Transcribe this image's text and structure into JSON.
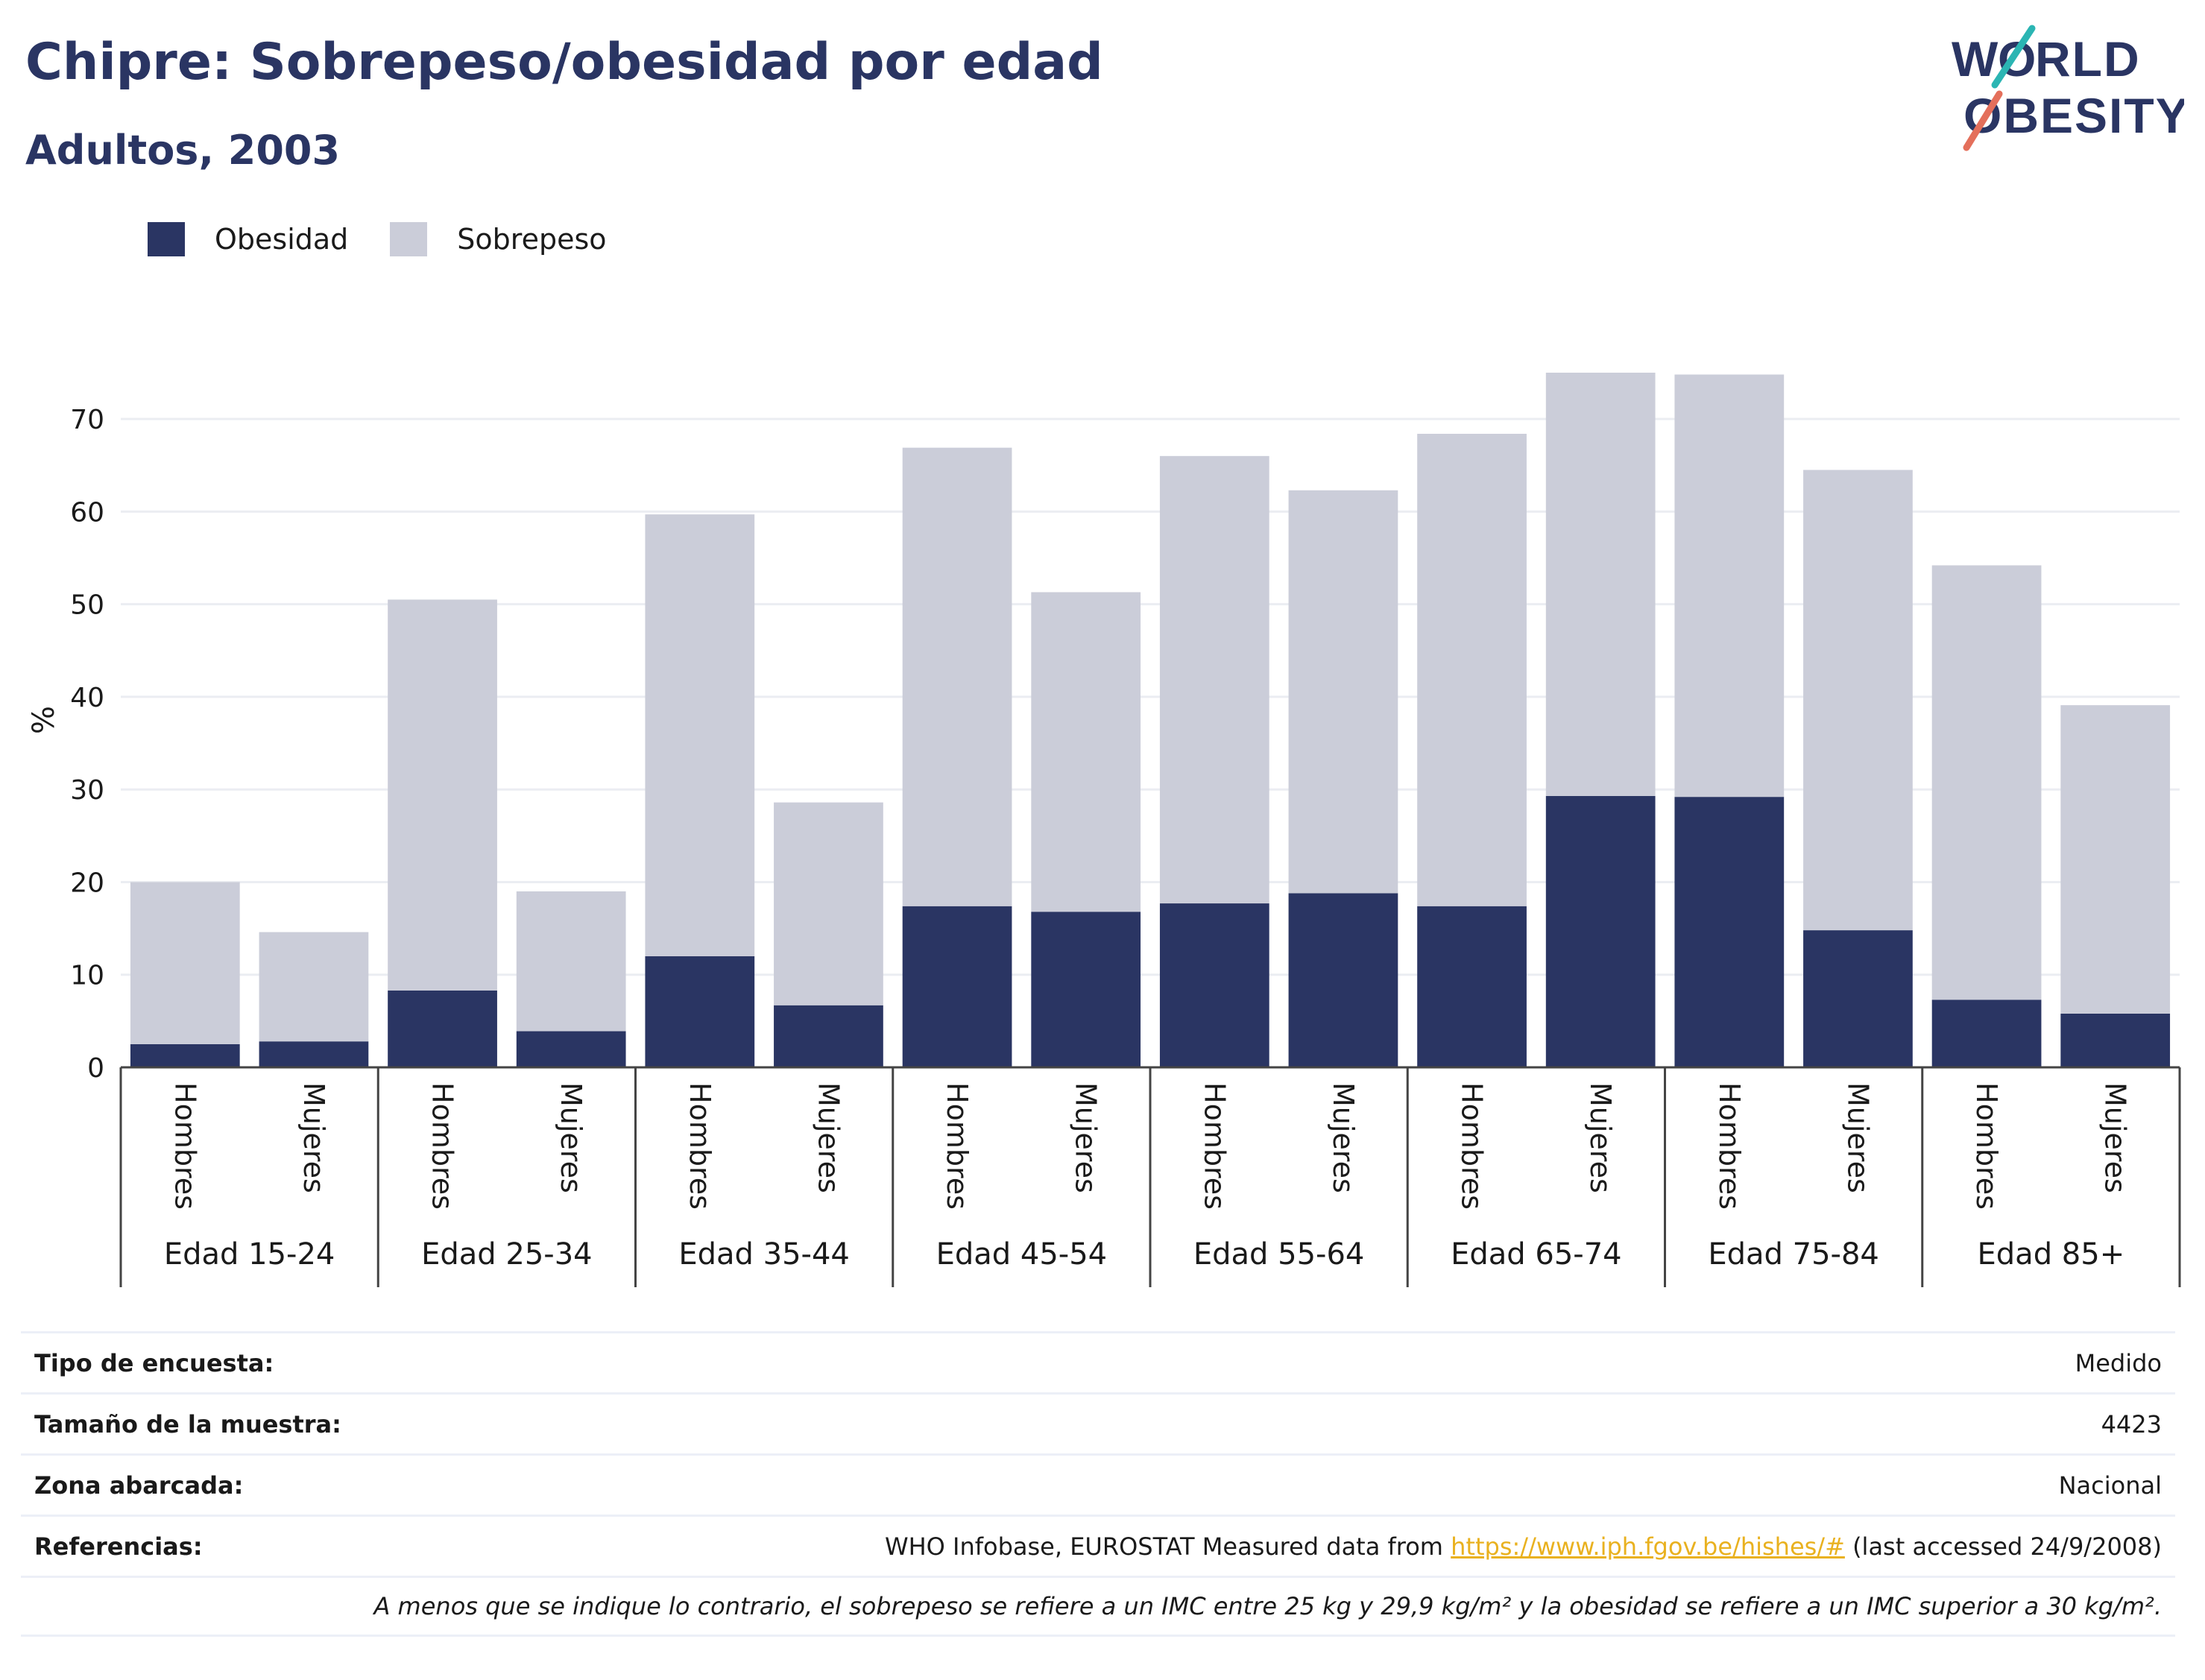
{
  "header": {
    "title": "Chipre: Sobrepeso/obesidad por edad",
    "subtitle": "Adultos, 2003"
  },
  "logo": {
    "line1": "WORLD",
    "line2": "OBESITY"
  },
  "legend": [
    {
      "label": "Obesidad",
      "color": "#2a3563"
    },
    {
      "label": "Sobrepeso",
      "color": "#cbcdd9"
    }
  ],
  "chart_data": {
    "type": "bar",
    "stacked": true,
    "ylabel": "%",
    "ylim": [
      0,
      75
    ],
    "yticks": [
      0,
      10,
      20,
      30,
      40,
      50,
      60,
      70
    ],
    "grid": true,
    "legend_position": "top-left",
    "groups": [
      "Edad 15-24",
      "Edad 25-34",
      "Edad 35-44",
      "Edad 45-54",
      "Edad 55-64",
      "Edad 65-74",
      "Edad 75-84",
      "Edad 85+"
    ],
    "subcategories": [
      "Hombres",
      "Mujeres"
    ],
    "series": [
      {
        "name": "Obesidad",
        "color": "#2a3563",
        "values": [
          2.5,
          2.8,
          8.3,
          3.9,
          12.0,
          6.7,
          17.4,
          16.8,
          17.7,
          18.8,
          17.4,
          29.3,
          29.2,
          14.8,
          7.3,
          5.8
        ]
      },
      {
        "name": "Sobrepeso",
        "color": "#cbcdd9",
        "values": [
          17.5,
          11.8,
          42.2,
          15.1,
          47.7,
          21.9,
          49.5,
          34.5,
          48.3,
          43.5,
          51.0,
          45.7,
          45.6,
          49.7,
          46.9,
          33.3
        ]
      }
    ]
  },
  "info": [
    {
      "label": "Tipo de encuesta:",
      "value": "Medido"
    },
    {
      "label": "Tamaño de la muestra:",
      "value": "4423"
    },
    {
      "label": "Zona abarcada:",
      "value": "Nacional"
    },
    {
      "label": "Referencias:",
      "value_prefix": "WHO Infobase, EUROSTAT Measured data from ",
      "link": "https://www.iph.fgov.be/hishes/#",
      "value_suffix": " (last accessed 24/9/2008)"
    }
  ],
  "note": "A menos que se indique lo contrario, el sobrepeso se refiere a un IMC entre 25 kg y 29,9 kg/m² y la obesidad se refiere a un IMC superior a 30 kg/m²."
}
